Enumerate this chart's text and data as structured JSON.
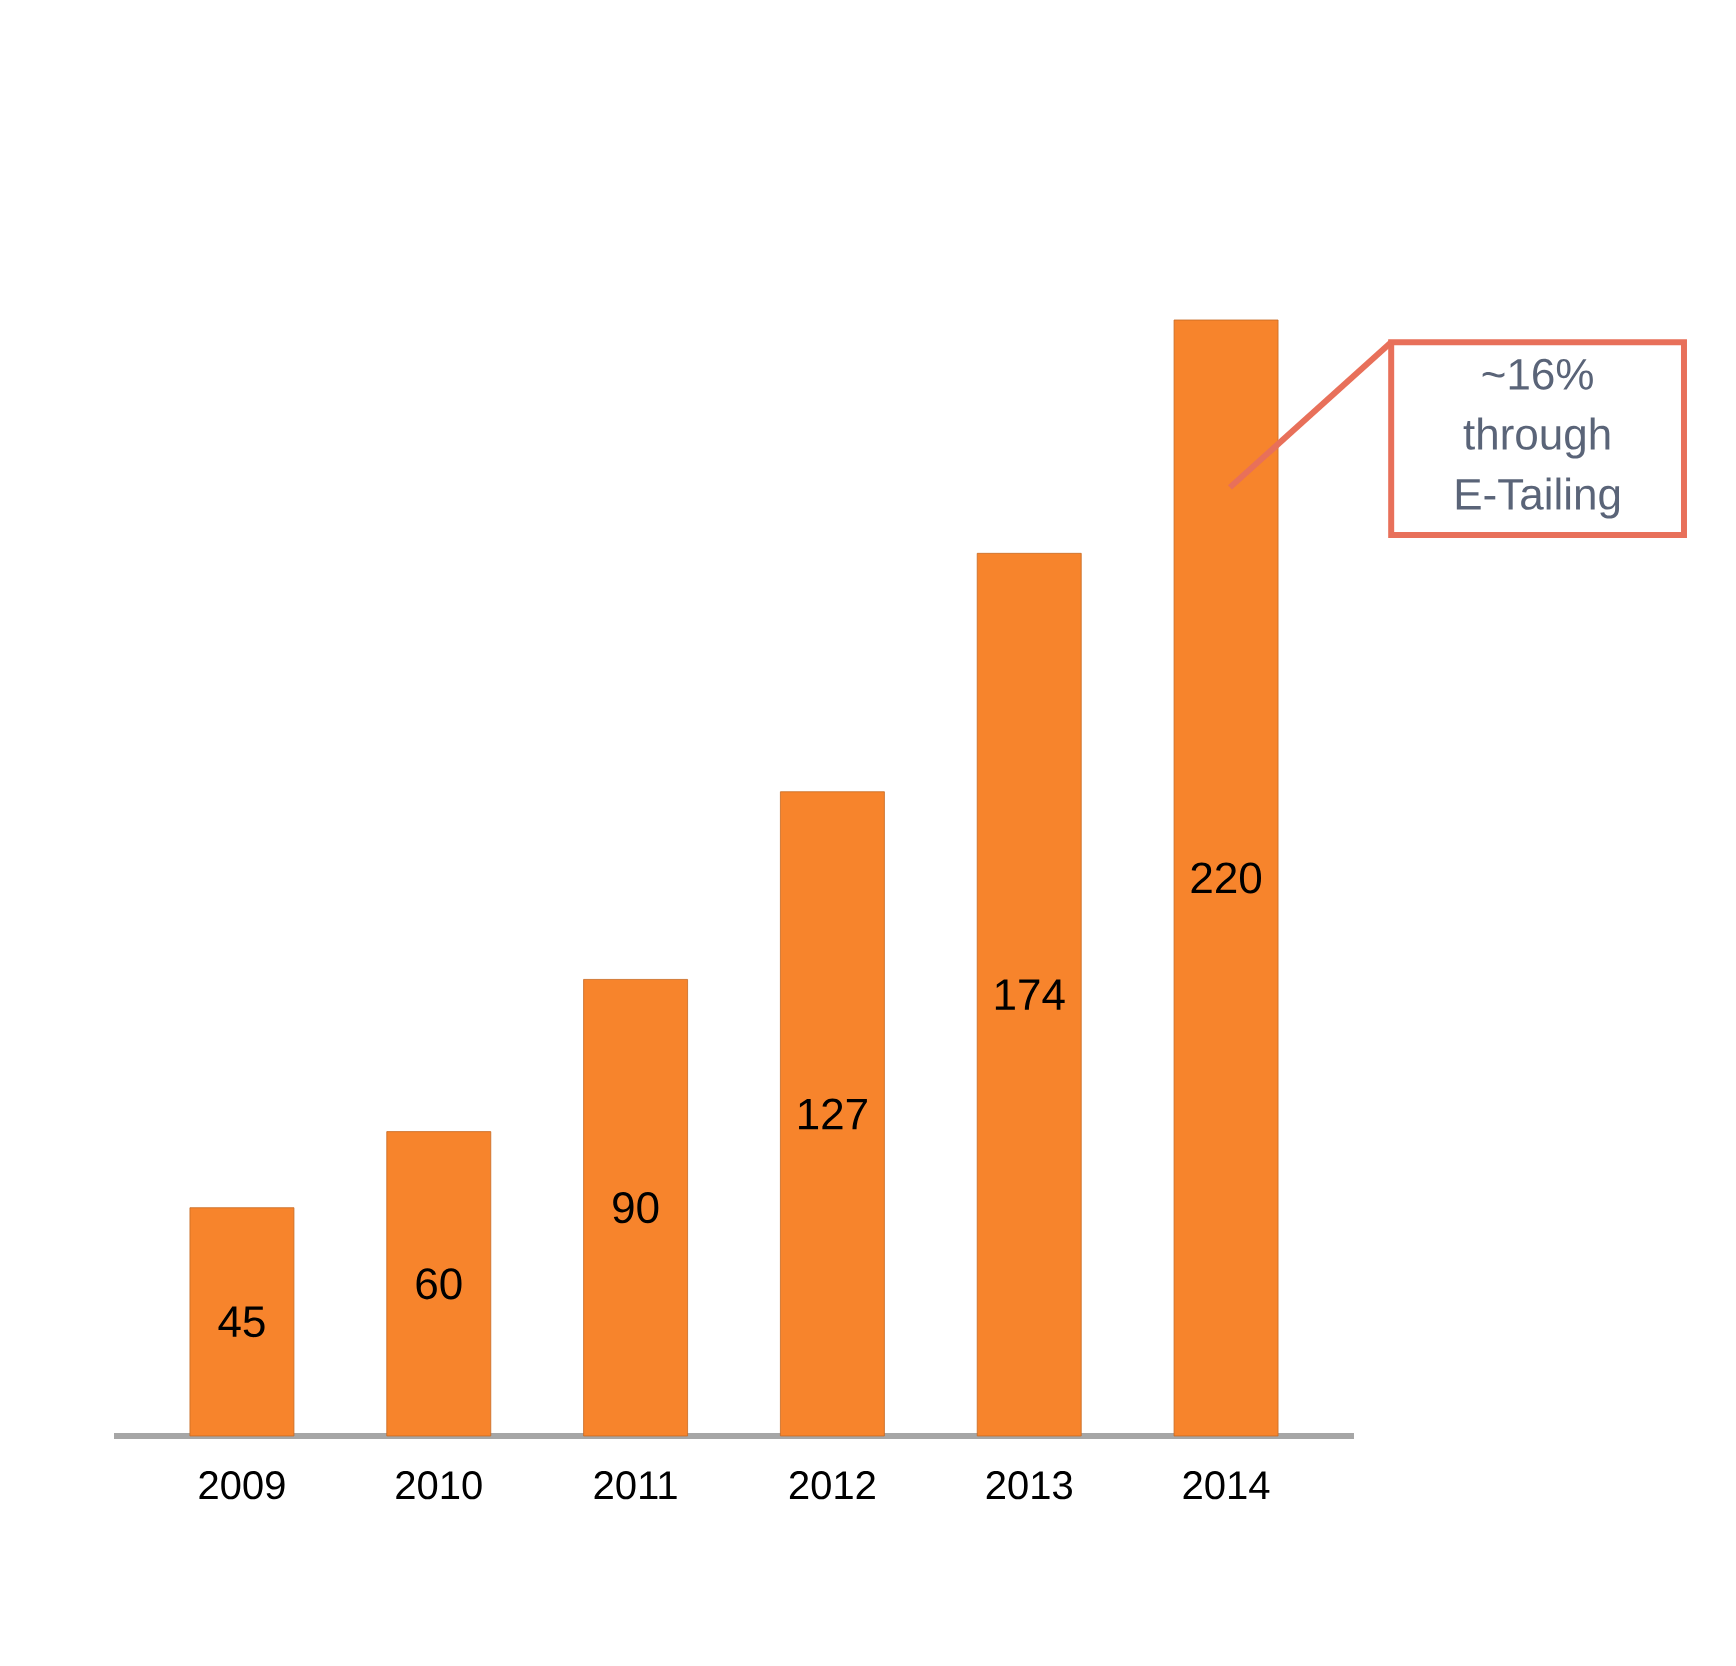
{
  "chart_data": {
    "type": "bar",
    "categories": [
      "2009",
      "2010",
      "2011",
      "2012",
      "2013",
      "2014"
    ],
    "values": [
      45,
      60,
      90,
      127,
      174,
      220
    ],
    "color": "#f7842c",
    "data_labels": true,
    "annotations": [
      "~16% through E-Tailing"
    ]
  }
}
